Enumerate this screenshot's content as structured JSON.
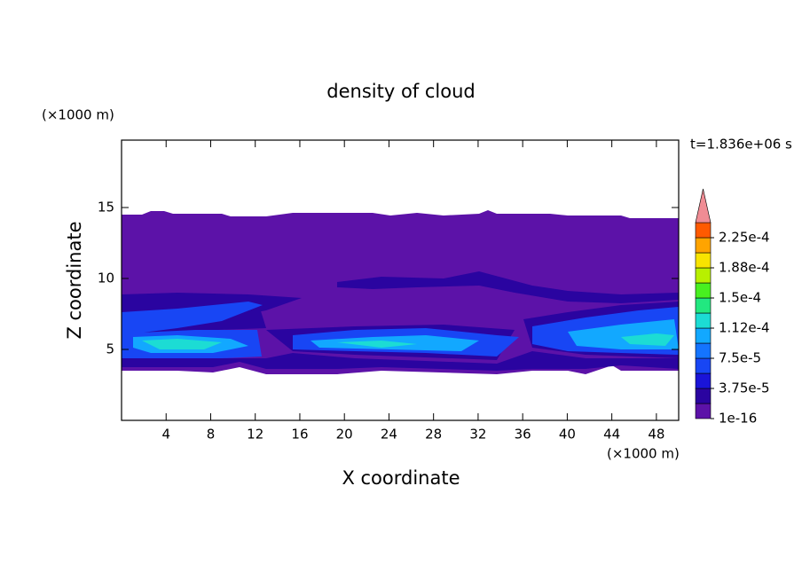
{
  "chart_data": {
    "type": "contour",
    "title": "density of cloud",
    "x_label": "X coordinate",
    "y_label": "Z coordinate",
    "x_unit": "(×1000 m)",
    "y_unit": "(×1000 m)",
    "annotation": "t=1.836e+06 s",
    "xlim": [
      0,
      50
    ],
    "ylim": [
      0,
      20
    ],
    "xticks": [
      4,
      8,
      12,
      16,
      20,
      24,
      28,
      32,
      36,
      40,
      44,
      48
    ],
    "yticks": [
      5,
      10,
      15
    ],
    "colorbar": {
      "levels": [
        1e-16,
        1.875e-05,
        3.75e-05,
        5.625e-05,
        7.5e-05,
        9.375e-05,
        0.0001125,
        0.00013125,
        0.00015,
        0.00016875,
        0.0001875,
        0.00020625,
        0.000225,
        0.00024375
      ],
      "colors": [
        "#5c12a8",
        "#2a04a0",
        "#1a14d8",
        "#1846f4",
        "#1474ff",
        "#12a8ff",
        "#1cdcd4",
        "#22e880",
        "#48f020",
        "#b8f000",
        "#f8e400",
        "#ffa400",
        "#ff5a00",
        "#f08c94"
      ],
      "ticks": [
        {
          "value": 1e-16,
          "label": "1e-16"
        },
        {
          "value": 3.75e-05,
          "label": "3.75e-5"
        },
        {
          "value": 7.5e-05,
          "label": "7.5e-5"
        },
        {
          "value": 0.0001125,
          "label": "1.12e-4"
        },
        {
          "value": 0.00015,
          "label": "1.5e-4"
        },
        {
          "value": 0.0001875,
          "label": "1.88e-4"
        },
        {
          "value": 0.000225,
          "label": "2.25e-4"
        }
      ]
    }
  }
}
